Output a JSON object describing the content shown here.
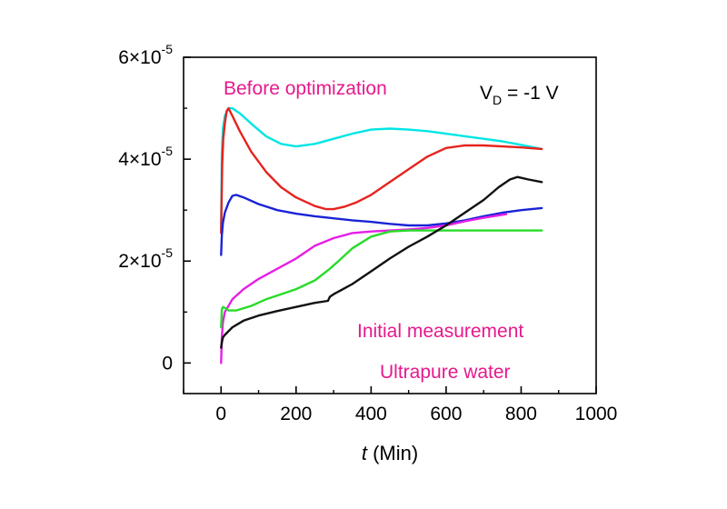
{
  "chart_data": {
    "type": "line",
    "title": "",
    "xlabel_italic": "t",
    "xlabel_rest": " (Min)",
    "ylabel": "",
    "xlim": [
      -100,
      1000
    ],
    "ylim": [
      -6e-06,
      6e-05
    ],
    "x_ticks": [
      {
        "value": 0,
        "label": "0"
      },
      {
        "value": 200,
        "label": "200"
      },
      {
        "value": 400,
        "label": "400"
      },
      {
        "value": 600,
        "label": "600"
      },
      {
        "value": 800,
        "label": "800"
      },
      {
        "value": 1000,
        "label": "1000"
      }
    ],
    "y_ticks": [
      {
        "value": 0,
        "base": "0",
        "exp": ""
      },
      {
        "value": 2e-05,
        "base": "2×10",
        "exp": "-5"
      },
      {
        "value": 4e-05,
        "base": "4×10",
        "exp": "-5"
      },
      {
        "value": 6e-05,
        "base": "6×10",
        "exp": "-5"
      }
    ],
    "grid": false,
    "annotations": {
      "before": "Before optimization",
      "vd_main": "V",
      "vd_sub": "D",
      "vd_rest": " = -1 V",
      "initial": "Initial measurement",
      "water": "Ultrapure water"
    },
    "annotation_colors": {
      "before": "#e6198c",
      "vd": "#000000",
      "initial": "#e6198c",
      "water": "#e6198c"
    },
    "series": [
      {
        "color": "#00e5e5",
        "x": [
          0,
          2,
          5,
          10,
          20,
          30,
          50,
          80,
          120,
          160,
          200,
          250,
          300,
          350,
          400,
          450,
          500,
          550,
          600,
          650,
          700,
          750,
          800,
          855
        ],
        "y": [
          2.6e-05,
          4.1e-05,
          4.6e-05,
          4.85e-05,
          5e-05,
          5e-05,
          4.9e-05,
          4.7e-05,
          4.45e-05,
          4.3e-05,
          4.25e-05,
          4.3e-05,
          4.4e-05,
          4.5e-05,
          4.58e-05,
          4.6e-05,
          4.58e-05,
          4.55e-05,
          4.5e-05,
          4.45e-05,
          4.4e-05,
          4.35e-05,
          4.28e-05,
          4.2e-05
        ]
      },
      {
        "color": "#e6231e",
        "x": [
          0,
          3,
          6,
          10,
          15,
          20,
          30,
          50,
          80,
          120,
          160,
          200,
          250,
          280,
          300,
          330,
          360,
          400,
          450,
          500,
          550,
          600,
          650,
          700,
          750,
          800,
          855
        ],
        "y": [
          2.55e-05,
          3.9e-05,
          4.4e-05,
          4.7e-05,
          4.95e-05,
          5e-05,
          4.85e-05,
          4.55e-05,
          4.15e-05,
          3.75e-05,
          3.45e-05,
          3.25e-05,
          3.08e-05,
          3.02e-05,
          3.02e-05,
          3.07e-05,
          3.15e-05,
          3.3e-05,
          3.55e-05,
          3.8e-05,
          4.05e-05,
          4.22e-05,
          4.27e-05,
          4.27e-05,
          4.25e-05,
          4.23e-05,
          4.2e-05
        ]
      },
      {
        "color": "#1a23d6",
        "x": [
          0,
          2,
          5,
          10,
          20,
          30,
          40,
          60,
          100,
          150,
          200,
          250,
          300,
          350,
          400,
          450,
          500,
          550,
          600,
          650,
          700,
          750,
          800,
          855
        ],
        "y": [
          2.12e-05,
          2.5e-05,
          2.75e-05,
          2.95e-05,
          3.15e-05,
          3.28e-05,
          3.3e-05,
          3.25e-05,
          3.12e-05,
          3e-05,
          2.93e-05,
          2.88e-05,
          2.84e-05,
          2.8e-05,
          2.77e-05,
          2.73e-05,
          2.7e-05,
          2.7e-05,
          2.74e-05,
          2.8e-05,
          2.88e-05,
          2.95e-05,
          3e-05,
          3.04e-05
        ]
      },
      {
        "color": "#e61ee6",
        "x": [
          0,
          2,
          5,
          10,
          30,
          60,
          100,
          150,
          200,
          250,
          300,
          350,
          400,
          450,
          500,
          550,
          600,
          650,
          700,
          760
        ],
        "y": [
          0,
          5e-06,
          8e-06,
          1e-05,
          1.25e-05,
          1.45e-05,
          1.65e-05,
          1.85e-05,
          2.05e-05,
          2.3e-05,
          2.45e-05,
          2.55e-05,
          2.58e-05,
          2.6e-05,
          2.62e-05,
          2.65e-05,
          2.7e-05,
          2.78e-05,
          2.85e-05,
          2.92e-05
        ]
      },
      {
        "color": "#28dc28",
        "x": [
          0,
          2,
          5,
          10,
          20,
          40,
          80,
          120,
          160,
          200,
          250,
          290,
          310,
          350,
          400,
          450,
          500,
          550,
          600,
          700,
          800,
          855
        ],
        "y": [
          7e-06,
          1.05e-05,
          1.1e-05,
          1.08e-05,
          1.03e-05,
          1.03e-05,
          1.12e-05,
          1.25e-05,
          1.35e-05,
          1.45e-05,
          1.62e-05,
          1.85e-05,
          1.98e-05,
          2.25e-05,
          2.48e-05,
          2.58e-05,
          2.6e-05,
          2.6e-05,
          2.6e-05,
          2.6e-05,
          2.6e-05,
          2.6e-05
        ]
      },
      {
        "color": "#111111",
        "x": [
          0,
          2,
          5,
          10,
          30,
          60,
          100,
          150,
          200,
          250,
          285,
          290,
          300,
          350,
          400,
          450,
          500,
          550,
          600,
          650,
          700,
          740,
          770,
          790,
          820,
          855
        ],
        "y": [
          3e-06,
          4e-06,
          5e-06,
          5.5e-06,
          7e-06,
          8.3e-06,
          9.3e-06,
          1.02e-05,
          1.1e-05,
          1.18e-05,
          1.22e-05,
          1.3e-05,
          1.35e-05,
          1.55e-05,
          1.8e-05,
          2.05e-05,
          2.28e-05,
          2.48e-05,
          2.7e-05,
          2.95e-05,
          3.2e-05,
          3.45e-05,
          3.6e-05,
          3.65e-05,
          3.6e-05,
          3.55e-05
        ]
      }
    ]
  }
}
